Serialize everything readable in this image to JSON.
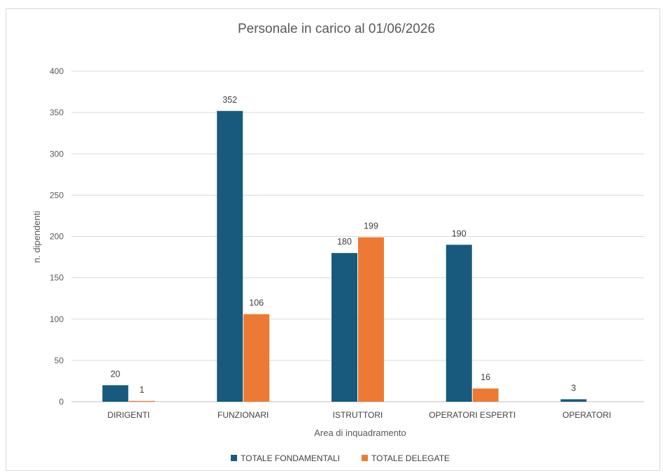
{
  "chart_data": {
    "type": "bar",
    "title": "Personale in carico al 01/06/2026",
    "xlabel": "Area di inquadramento",
    "ylabel": "n. dipendenti",
    "categories": [
      "DIRIGENTI",
      "FUNZIONARI",
      "ISTRUTTORI",
      "OPERATORI ESPERTI",
      "OPERATORI"
    ],
    "series": [
      {
        "name": "TOTALE FONDAMENTALI",
        "color": "#175a7d",
        "values": [
          20,
          352,
          180,
          190,
          3
        ],
        "labels": [
          "20",
          "352",
          "180",
          "190",
          "3"
        ]
      },
      {
        "name": "TOTALE DELEGATE",
        "color": "#ec7a34",
        "values": [
          1,
          106,
          199,
          16,
          0
        ],
        "labels": [
          "1",
          "106",
          "199",
          "16",
          ""
        ]
      }
    ],
    "ylim": [
      0,
      400
    ],
    "yticks": [
      0,
      50,
      100,
      150,
      200,
      250,
      300,
      350,
      400
    ],
    "grid": true,
    "legend": "bottom"
  }
}
